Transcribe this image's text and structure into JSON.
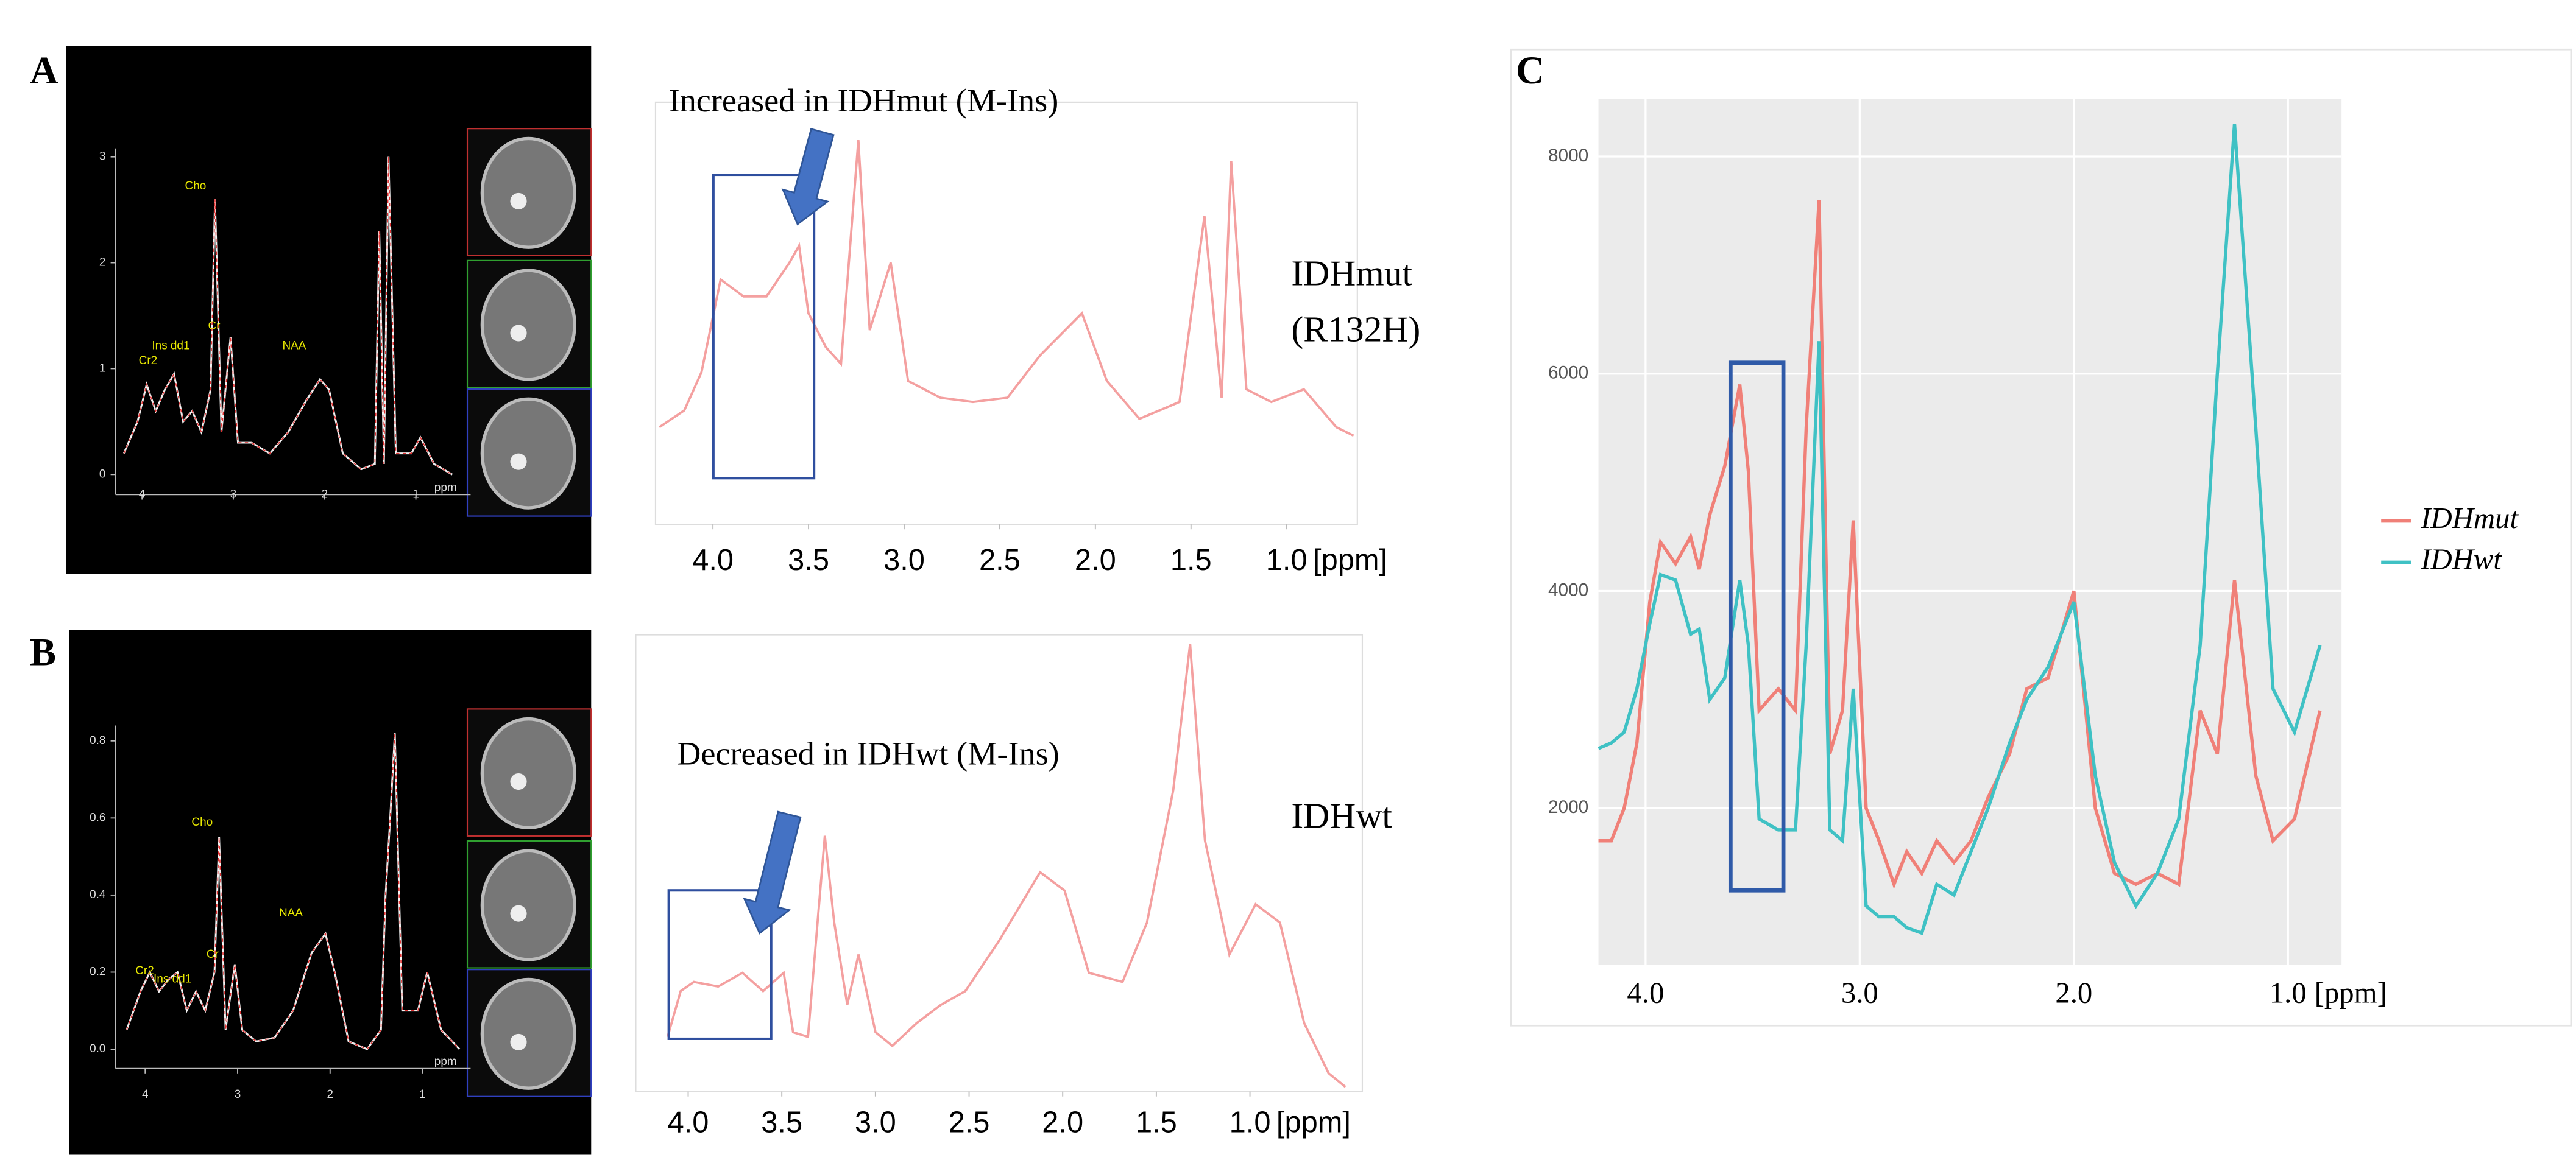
{
  "panels": [
    {
      "label": "A",
      "scanner": {
        "xlim": [
          4.29,
          0.4
        ],
        "ylim": [
          -0.19,
          3.08
        ],
        "xticks": [
          4,
          3,
          2,
          1
        ],
        "yticks": [
          0,
          1,
          2,
          3
        ],
        "x_unit": "ppm",
        "peaks": [
          "Cr2",
          "Ins dd1",
          "Cho",
          "Cr",
          "NAA"
        ],
        "x": [
          4.2,
          4.05,
          3.95,
          3.85,
          3.75,
          3.65,
          3.55,
          3.45,
          3.35,
          3.25,
          3.2,
          3.13,
          3.03,
          2.95,
          2.8,
          2.6,
          2.4,
          2.2,
          2.05,
          1.95,
          1.8,
          1.6,
          1.45,
          1.4,
          1.35,
          1.3,
          1.22,
          1.05,
          0.95,
          0.8,
          0.6
        ],
        "values": [
          0.2,
          0.5,
          0.85,
          0.6,
          0.8,
          0.95,
          0.5,
          0.6,
          0.4,
          0.8,
          2.6,
          0.4,
          1.3,
          0.3,
          0.3,
          0.2,
          0.4,
          0.7,
          0.9,
          0.8,
          0.2,
          0.05,
          0.1,
          2.3,
          0.1,
          3.0,
          0.2,
          0.2,
          0.35,
          0.1,
          0.0
        ]
      },
      "spectrum": {
        "annotation": "Increased in IDHmut (M-Ins)",
        "xlim": [
          4.3,
          0.63
        ],
        "ylim": [
          0,
          100
        ],
        "xticks": [
          {
            "value": 4,
            "label": "4.0"
          },
          3.5,
          {
            "value": 3,
            "label": "3.0"
          },
          2.5,
          {
            "value": 2,
            "label": "2.0"
          },
          1.5,
          {
            "value": 1,
            "label": "1.0"
          }
        ],
        "x_unit": "[ppm]",
        "x": [
          4.28,
          4.15,
          4.06,
          3.96,
          3.84,
          3.72,
          3.6,
          3.55,
          3.5,
          3.41,
          3.33,
          3.24,
          3.18,
          3.07,
          2.98,
          2.81,
          2.64,
          2.46,
          2.29,
          2.07,
          1.94,
          1.77,
          1.56,
          1.43,
          1.34,
          1.29,
          1.21,
          1.08,
          0.91,
          0.74,
          0.65
        ],
        "values": [
          23,
          27,
          36,
          58,
          54,
          54,
          62,
          66,
          50,
          42,
          38,
          91,
          46,
          62,
          34,
          30,
          29,
          30,
          40,
          50,
          34,
          25,
          29,
          73,
          30,
          86,
          32,
          29,
          32,
          23,
          21
        ]
      },
      "group": [
        "IDHmut",
        "(R132H)"
      ]
    },
    {
      "label": "B",
      "scanner": {
        "xlim": [
          4.32,
          0.48
        ],
        "ylim": [
          -0.05,
          0.84
        ],
        "xticks": [
          4,
          3,
          2,
          1
        ],
        "yticks": [
          {
            "value": 0,
            "label": "0.0"
          },
          0.2,
          0.4,
          0.6,
          0.8
        ],
        "x_unit": "ppm",
        "peaks": [
          "Cr2",
          "Ins dd1",
          "Cho",
          "Cr",
          "NAA"
        ],
        "x": [
          4.2,
          4.05,
          3.95,
          3.85,
          3.75,
          3.65,
          3.55,
          3.45,
          3.35,
          3.25,
          3.2,
          3.13,
          3.03,
          2.95,
          2.8,
          2.6,
          2.4,
          2.2,
          2.05,
          1.95,
          1.8,
          1.6,
          1.45,
          1.4,
          1.35,
          1.3,
          1.22,
          1.05,
          0.95,
          0.8,
          0.6
        ],
        "values": [
          0.05,
          0.15,
          0.2,
          0.15,
          0.18,
          0.2,
          0.1,
          0.15,
          0.1,
          0.2,
          0.55,
          0.05,
          0.22,
          0.05,
          0.02,
          0.03,
          0.1,
          0.25,
          0.3,
          0.2,
          0.02,
          0,
          0.05,
          0.4,
          0.6,
          0.82,
          0.1,
          0.1,
          0.2,
          0.05,
          0
        ]
      },
      "spectrum": {
        "annotation": "Decreased in IDHwt (M-Ins)",
        "xlim": [
          4.28,
          0.4
        ],
        "ylim": [
          0,
          100
        ],
        "xticks": [
          {
            "value": 4,
            "label": "4.0"
          },
          3.5,
          {
            "value": 3,
            "label": "3.0"
          },
          2.5,
          {
            "value": 2,
            "label": "2.0"
          },
          1.5,
          {
            "value": 1,
            "label": "1.0"
          }
        ],
        "x_unit": "[ppm]",
        "x": [
          4.11,
          4.04,
          3.97,
          3.84,
          3.71,
          3.6,
          3.49,
          3.44,
          3.36,
          3.27,
          3.22,
          3.15,
          3.09,
          3.0,
          2.91,
          2.78,
          2.65,
          2.52,
          2.34,
          2.12,
          1.99,
          1.86,
          1.68,
          1.55,
          1.41,
          1.32,
          1.24,
          1.11,
          0.97,
          0.84,
          0.71,
          0.58,
          0.49
        ],
        "values": [
          12,
          22,
          24,
          23,
          26,
          22,
          26,
          13,
          12,
          56,
          37,
          19,
          30,
          13,
          10,
          15,
          19,
          22,
          33,
          48,
          44,
          26,
          24,
          37,
          66,
          98,
          55,
          30,
          41,
          37,
          15,
          4,
          1
        ]
      },
      "group": [
        "IDHwt"
      ]
    }
  ],
  "chart_data": {
    "type": "line",
    "panel_label": "C",
    "xlim": [
      4.22,
      0.75
    ],
    "ylim": [
      560,
      8530
    ],
    "xticks": [
      {
        "value": 4,
        "label": "4.0"
      },
      {
        "value": 3,
        "label": "3.0"
      },
      {
        "value": 2,
        "label": "2.0"
      },
      {
        "value": 1,
        "label": "1.0"
      }
    ],
    "x_unit": "[ppm]",
    "yticks": [
      2000,
      4000,
      6000,
      8000
    ],
    "grid": true,
    "x": [
      4.22,
      4.16,
      4.1,
      4.04,
      3.98,
      3.93,
      3.86,
      3.79,
      3.75,
      3.7,
      3.63,
      3.56,
      3.52,
      3.47,
      3.38,
      3.3,
      3.25,
      3.19,
      3.14,
      3.08,
      3.03,
      2.97,
      2.91,
      2.84,
      2.78,
      2.71,
      2.64,
      2.56,
      2.48,
      2.4,
      2.3,
      2.22,
      2.12,
      2.0,
      1.9,
      1.81,
      1.71,
      1.61,
      1.51,
      1.41,
      1.33,
      1.25,
      1.15,
      1.07,
      0.97,
      0.85
    ],
    "series": [
      {
        "name": "IDHmut",
        "color": "#f08078",
        "values": [
          1700,
          1700,
          2000,
          2600,
          3900,
          4450,
          4250,
          4500,
          4200,
          4700,
          5150,
          5900,
          5100,
          2900,
          3100,
          2900,
          5500,
          7600,
          2500,
          2900,
          4650,
          2000,
          1700,
          1300,
          1600,
          1400,
          1700,
          1500,
          1700,
          2100,
          2500,
          3100,
          3200,
          4000,
          2000,
          1400,
          1300,
          1400,
          1300,
          2900,
          2500,
          4100,
          2300,
          1700,
          1900,
          2900
        ]
      },
      {
        "name": "IDHwt",
        "color": "#3fc1c4",
        "values": [
          2550,
          2600,
          2700,
          3100,
          3700,
          4150,
          4100,
          3600,
          3650,
          3000,
          3200,
          4100,
          3500,
          1900,
          1800,
          1800,
          3500,
          6300,
          1800,
          1700,
          3100,
          1100,
          1000,
          1000,
          900,
          850,
          1300,
          1200,
          1600,
          2000,
          2600,
          3000,
          3300,
          3900,
          2300,
          1500,
          1100,
          1400,
          1900,
          3500,
          6000,
          8300,
          5500,
          3100,
          2700,
          3500
        ]
      }
    ]
  }
}
